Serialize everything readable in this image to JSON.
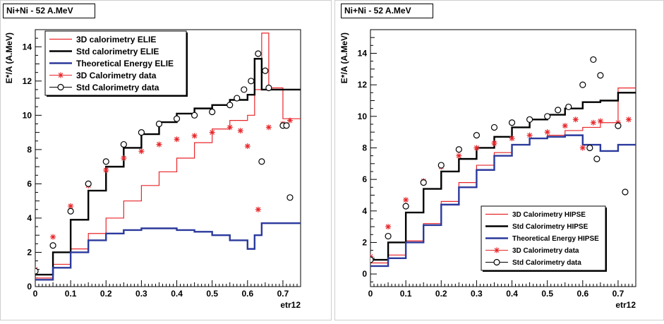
{
  "chart_data": [
    {
      "type": "line",
      "title": "Ni+Ni - 52 A.MeV",
      "xlabel": "etr12",
      "ylabel": "E*/A (A.MeV)",
      "xlim": [
        0,
        0.75
      ],
      "ylim": [
        0,
        15
      ],
      "x_ticks": [
        "0",
        "0.1",
        "0.2",
        "0.3",
        "0.4",
        "0.5",
        "0.6",
        "0.7"
      ],
      "y_ticks": [
        "0",
        "2",
        "4",
        "6",
        "8",
        "10",
        "12",
        "14"
      ],
      "legend_position": "top-left",
      "series": [
        {
          "name": "3D calorimetry ELIE",
          "style": "step",
          "color": "#e8262a",
          "x": [
            0,
            0.05,
            0.1,
            0.15,
            0.2,
            0.25,
            0.3,
            0.35,
            0.4,
            0.45,
            0.5,
            0.55,
            0.6,
            0.62,
            0.64,
            0.66,
            0.7
          ],
          "y": [
            0.5,
            1.3,
            2.2,
            3.1,
            4.0,
            5.0,
            5.9,
            6.7,
            7.5,
            8.4,
            9.2,
            9.7,
            10.0,
            11.5,
            14.8,
            11.6,
            9.8
          ]
        },
        {
          "name": "Std calorimetry ELIE",
          "style": "step",
          "color": "#000000",
          "x": [
            0,
            0.05,
            0.1,
            0.15,
            0.2,
            0.25,
            0.3,
            0.35,
            0.4,
            0.45,
            0.5,
            0.55,
            0.6,
            0.62,
            0.64,
            0.66,
            0.7
          ],
          "y": [
            0.7,
            2.0,
            3.9,
            5.6,
            7.0,
            8.1,
            8.9,
            9.6,
            10.1,
            10.4,
            10.6,
            10.9,
            11.2,
            13.3,
            11.5,
            11.5,
            11.5
          ]
        },
        {
          "name": "Theoretical Energy ELIE",
          "style": "step",
          "color": "#2b3a9c",
          "x": [
            0,
            0.05,
            0.1,
            0.15,
            0.2,
            0.25,
            0.3,
            0.35,
            0.4,
            0.45,
            0.5,
            0.55,
            0.6,
            0.62,
            0.64,
            0.66,
            0.7
          ],
          "y": [
            0.4,
            1.1,
            2.0,
            2.7,
            3.1,
            3.3,
            3.4,
            3.4,
            3.3,
            3.2,
            3.0,
            2.7,
            2.2,
            3.0,
            3.7,
            3.7,
            3.7
          ]
        },
        {
          "name": "3D Calorimetry data",
          "style": "star",
          "color": "#e8262a",
          "x": [
            0,
            0.05,
            0.1,
            0.15,
            0.2,
            0.25,
            0.3,
            0.35,
            0.4,
            0.45,
            0.5,
            0.55,
            0.58,
            0.6,
            0.63,
            0.66,
            0.7,
            0.72
          ],
          "y": [
            1.0,
            2.9,
            4.7,
            5.9,
            6.8,
            7.5,
            7.9,
            8.3,
            8.6,
            8.8,
            9.0,
            9.3,
            9.1,
            8.2,
            4.5,
            9.3,
            9.5,
            9.7
          ]
        },
        {
          "name": "Std Calorimetry data",
          "style": "circle",
          "color": "#000000",
          "x": [
            0,
            0.05,
            0.1,
            0.15,
            0.2,
            0.25,
            0.3,
            0.35,
            0.4,
            0.45,
            0.5,
            0.55,
            0.57,
            0.59,
            0.61,
            0.63,
            0.64,
            0.65,
            0.66,
            0.7,
            0.71,
            0.72
          ],
          "y": [
            0.9,
            2.4,
            4.4,
            6.0,
            7.3,
            8.3,
            9.0,
            9.5,
            9.8,
            10.0,
            10.2,
            10.6,
            11.0,
            11.5,
            12.0,
            13.6,
            7.3,
            12.6,
            11.6,
            9.4,
            9.4,
            5.2
          ]
        }
      ]
    },
    {
      "type": "line",
      "title": "Ni+Ni - 52 A.MeV",
      "xlabel": "etr12",
      "ylabel": "E*/A (A.MeV)",
      "xlim": [
        0,
        0.75
      ],
      "ylim": [
        -0.8,
        15.5
      ],
      "x_ticks": [
        "0",
        "0.1",
        "0.2",
        "0.3",
        "0.4",
        "0.5",
        "0.6",
        "0.7"
      ],
      "y_ticks": [
        "0",
        "2",
        "4",
        "6",
        "8",
        "10",
        "12",
        "14"
      ],
      "legend_position": "bottom-right",
      "series": [
        {
          "name": "3D Calorimetry HIPSE",
          "style": "step",
          "color": "#e8262a",
          "x": [
            0,
            0.05,
            0.1,
            0.15,
            0.2,
            0.25,
            0.3,
            0.35,
            0.4,
            0.45,
            0.5,
            0.55,
            0.6,
            0.65,
            0.7,
            0.74
          ],
          "y": [
            0.7,
            1.2,
            2.1,
            3.2,
            4.6,
            5.8,
            6.9,
            7.7,
            8.2,
            8.6,
            8.8,
            9.1,
            9.3,
            9.6,
            11.8,
            11.8
          ]
        },
        {
          "name": "Std Calorimetry HIPSE",
          "style": "step",
          "color": "#000000",
          "x": [
            0,
            0.05,
            0.1,
            0.15,
            0.2,
            0.25,
            0.3,
            0.35,
            0.4,
            0.45,
            0.5,
            0.55,
            0.6,
            0.65,
            0.7,
            0.74
          ],
          "y": [
            0.9,
            2.0,
            3.9,
            5.4,
            6.5,
            7.3,
            8.0,
            8.7,
            9.3,
            9.8,
            10.1,
            10.5,
            10.9,
            11.0,
            11.5,
            11.5
          ]
        },
        {
          "name": "Theoretical Energy HIPSE",
          "style": "step",
          "color": "#2b3a9c",
          "x": [
            0,
            0.05,
            0.1,
            0.15,
            0.2,
            0.25,
            0.3,
            0.35,
            0.4,
            0.45,
            0.5,
            0.55,
            0.6,
            0.65,
            0.7,
            0.74
          ],
          "y": [
            0.5,
            1.0,
            2.0,
            3.1,
            4.4,
            5.5,
            6.6,
            7.5,
            8.2,
            8.6,
            8.7,
            8.8,
            8.2,
            7.8,
            8.2,
            8.2
          ]
        },
        {
          "name": "3D Calorimetry data",
          "style": "star",
          "color": "#e8262a",
          "x": [
            0,
            0.05,
            0.1,
            0.15,
            0.2,
            0.25,
            0.3,
            0.35,
            0.4,
            0.45,
            0.5,
            0.55,
            0.58,
            0.6,
            0.63,
            0.65,
            0.7,
            0.73
          ],
          "y": [
            1.1,
            3.0,
            4.7,
            5.9,
            6.8,
            7.5,
            8.0,
            8.3,
            8.6,
            8.8,
            9.0,
            9.4,
            9.8,
            8.0,
            9.6,
            9.7,
            9.6,
            9.8
          ]
        },
        {
          "name": "Std Calorimetry data",
          "style": "circle",
          "color": "#000000",
          "x": [
            0,
            0.05,
            0.1,
            0.15,
            0.2,
            0.25,
            0.3,
            0.35,
            0.4,
            0.45,
            0.5,
            0.53,
            0.56,
            0.6,
            0.62,
            0.63,
            0.64,
            0.65,
            0.7,
            0.72
          ],
          "y": [
            0.9,
            2.4,
            4.3,
            5.8,
            6.9,
            7.9,
            8.8,
            9.3,
            9.6,
            9.8,
            10.0,
            10.4,
            10.6,
            12.0,
            8.0,
            13.6,
            7.3,
            12.6,
            9.4,
            5.2
          ]
        }
      ]
    }
  ]
}
